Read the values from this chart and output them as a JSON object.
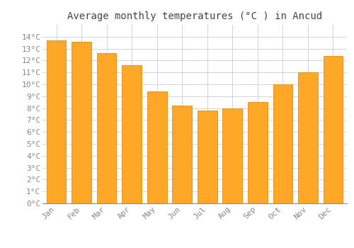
{
  "title": "Average monthly temperatures (°C ) in Ancud",
  "months": [
    "Jan",
    "Feb",
    "Mar",
    "Apr",
    "May",
    "Jun",
    "Jul",
    "Aug",
    "Sep",
    "Oct",
    "Nov",
    "Dec"
  ],
  "values": [
    13.7,
    13.6,
    12.6,
    11.6,
    9.4,
    8.2,
    7.8,
    8.0,
    8.5,
    10.0,
    11.0,
    12.4
  ],
  "bar_color": "#FFA726",
  "bar_edge_color": "#E69520",
  "background_color": "#FFFFFF",
  "grid_color": "#CCCCCC",
  "ylim": [
    0,
    15
  ],
  "yticks": [
    0,
    1,
    2,
    3,
    4,
    5,
    6,
    7,
    8,
    9,
    10,
    11,
    12,
    13,
    14
  ],
  "title_fontsize": 10,
  "tick_fontsize": 8,
  "title_color": "#444444",
  "tick_color": "#888888",
  "font_family": "monospace"
}
